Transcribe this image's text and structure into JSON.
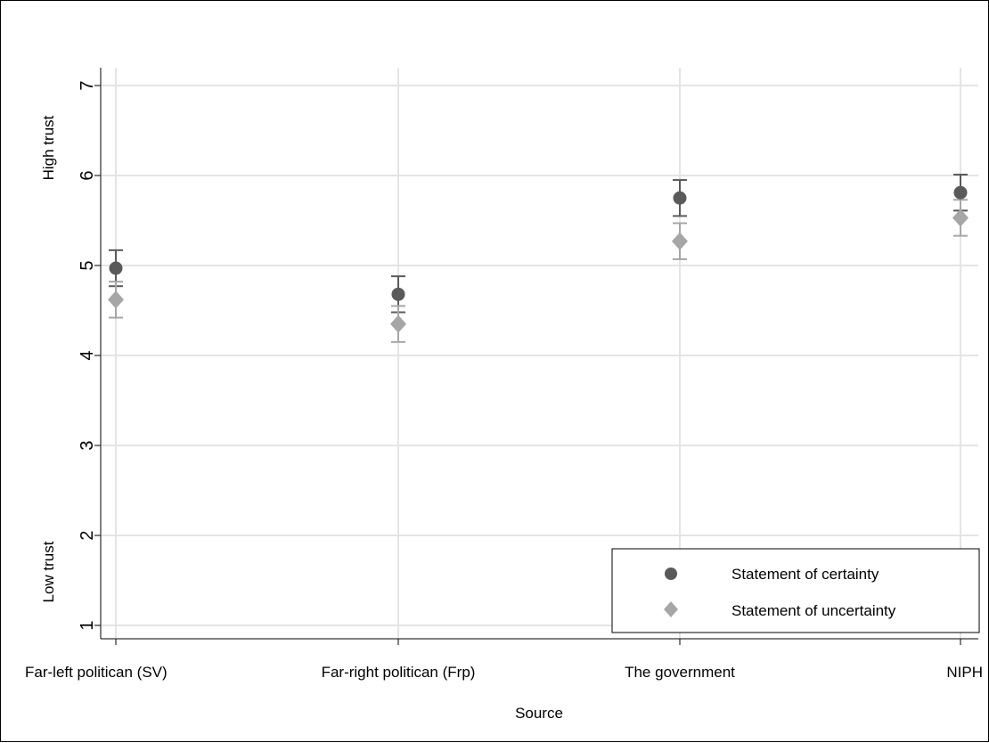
{
  "chart_data": {
    "type": "scatter",
    "xlabel": "Source",
    "ylabel_top": "High trust",
    "ylabel_bottom": "Low trust",
    "categories": [
      "Far-left politican (SV)",
      "Far-right politican (Frp)",
      "The government",
      "NIPH"
    ],
    "yticks": [
      1,
      2,
      3,
      4,
      5,
      6,
      7
    ],
    "ylim": [
      0.85,
      7.2
    ],
    "grid": true,
    "legend_position": "bottom-right",
    "series": [
      {
        "name": "Statement of certainty",
        "marker": "circle",
        "color": "#5a5a5a",
        "values": [
          4.97,
          4.68,
          5.75,
          5.81
        ],
        "ci_low": [
          4.77,
          4.48,
          5.55,
          5.61
        ],
        "ci_high": [
          5.17,
          4.88,
          5.95,
          6.01
        ]
      },
      {
        "name": "Statement of uncertainty",
        "marker": "diamond",
        "color": "#a6a6a6",
        "values": [
          4.62,
          4.35,
          5.27,
          5.53
        ],
        "ci_low": [
          4.42,
          4.15,
          5.07,
          5.33
        ],
        "ci_high": [
          4.82,
          4.55,
          5.47,
          5.73
        ]
      }
    ]
  }
}
